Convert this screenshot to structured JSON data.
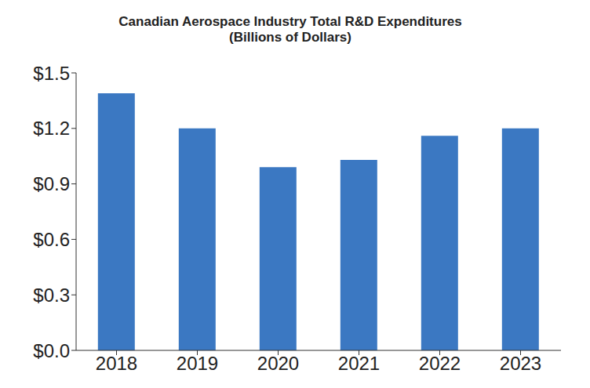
{
  "chart_data": {
    "type": "bar",
    "title": "Canadian Aerospace Industry Total R&D Expenditures",
    "subtitle": "(Billions of Dollars)",
    "categories": [
      "2018",
      "2019",
      "2020",
      "2021",
      "2022",
      "2023"
    ],
    "values": [
      1.39,
      1.2,
      0.99,
      1.03,
      1.16,
      1.2
    ],
    "color": "#3b78c2",
    "ylim": [
      0,
      1.5
    ],
    "yticks": [
      {
        "value": 0,
        "label": "$0.0"
      },
      {
        "value": 0.3,
        "label": "$0.3"
      },
      {
        "value": 0.6,
        "label": "$0.6"
      },
      {
        "value": 0.9,
        "label": "$0.9"
      },
      {
        "value": 1.2,
        "label": "$1.2"
      },
      {
        "value": 1.5,
        "label": "$1.5"
      }
    ],
    "grid": false
  }
}
